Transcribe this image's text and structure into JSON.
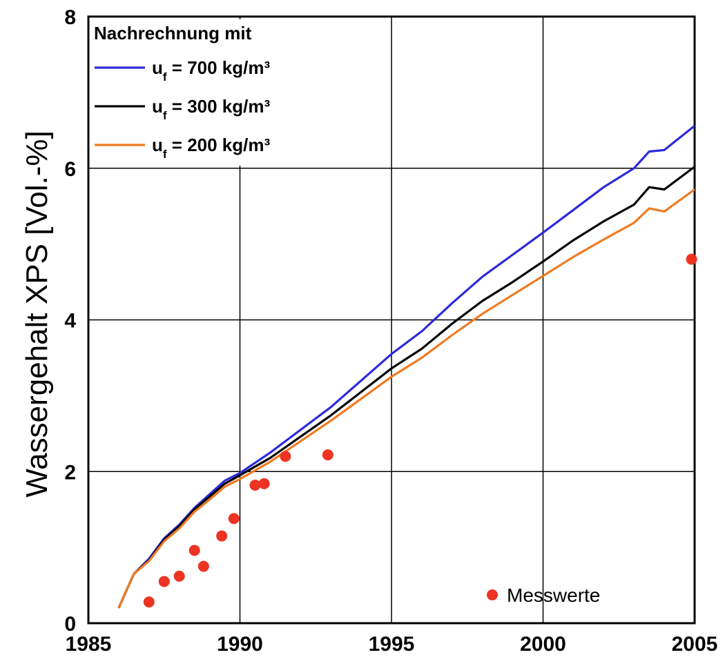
{
  "chart_data": {
    "type": "line",
    "title": "",
    "xlabel": "",
    "ylabel": "Wassergehalt XPS [Vol.-%]",
    "xlim": [
      1985,
      2005
    ],
    "ylim": [
      0,
      8
    ],
    "x_ticks": [
      "1985",
      "1990",
      "1995",
      "2000",
      "2005"
    ],
    "y_ticks": [
      "0",
      "2",
      "4",
      "6",
      "8"
    ],
    "grid": true,
    "legend_title": "Nachrechnung mit",
    "legend_placement": "top-left",
    "series": [
      {
        "name": "u_f = 700 kg/m³",
        "label_main": "u",
        "label_sub": "f",
        "label_rest": " = 700 kg/m³",
        "color": "#2b2bdc",
        "x": [
          1986,
          1986.5,
          1987,
          1987.5,
          1988,
          1988.5,
          1989,
          1989.5,
          1990,
          1991,
          1992,
          1993,
          1994,
          1995,
          1996,
          1997,
          1998,
          1999,
          2000,
          2001,
          2002,
          2003,
          2003.5,
          2004,
          2005
        ],
        "y": [
          0.2,
          0.65,
          0.85,
          1.12,
          1.3,
          1.52,
          1.7,
          1.88,
          1.98,
          2.25,
          2.55,
          2.85,
          3.2,
          3.55,
          3.85,
          4.22,
          4.57,
          4.86,
          5.15,
          5.45,
          5.75,
          6.0,
          6.22,
          6.24,
          6.56
        ]
      },
      {
        "name": "u_f = 300 kg/m³",
        "label_main": "u",
        "label_sub": "f",
        "label_rest": " = 300 kg/m³",
        "color": "#000000",
        "x": [
          1986,
          1986.5,
          1987,
          1987.5,
          1988,
          1988.5,
          1989,
          1989.5,
          1990,
          1991,
          1992,
          1993,
          1994,
          1995,
          1996,
          1997,
          1998,
          1999,
          2000,
          2001,
          2002,
          2003,
          2003.5,
          2004,
          2005
        ],
        "y": [
          0.2,
          0.65,
          0.83,
          1.1,
          1.28,
          1.5,
          1.67,
          1.84,
          1.95,
          2.18,
          2.46,
          2.74,
          3.05,
          3.36,
          3.62,
          3.95,
          4.25,
          4.5,
          4.77,
          5.05,
          5.3,
          5.52,
          5.75,
          5.72,
          6.02
        ]
      },
      {
        "name": "u_f = 200 kg/m³",
        "label_main": "u",
        "label_sub": "f",
        "label_rest": " = 200 kg/m³",
        "color": "#f07a20",
        "x": [
          1986,
          1986.5,
          1987,
          1987.5,
          1988,
          1988.5,
          1989,
          1989.5,
          1990,
          1991,
          1992,
          1993,
          1994,
          1995,
          1996,
          1997,
          1998,
          1999,
          2000,
          2001,
          2002,
          2003,
          2003.5,
          2004,
          2005
        ],
        "y": [
          0.2,
          0.65,
          0.82,
          1.08,
          1.25,
          1.47,
          1.63,
          1.8,
          1.9,
          2.13,
          2.4,
          2.67,
          2.96,
          3.25,
          3.5,
          3.8,
          4.08,
          4.33,
          4.58,
          4.83,
          5.06,
          5.28,
          5.47,
          5.43,
          5.72
        ]
      }
    ],
    "points": {
      "name": "Messwerte",
      "color": "#ee3322",
      "x": [
        1987.0,
        1987.5,
        1988.0,
        1988.5,
        1988.8,
        1989.4,
        1989.8,
        1990.5,
        1990.8,
        1991.5,
        1992.9,
        2004.9
      ],
      "y": [
        0.28,
        0.55,
        0.62,
        0.96,
        0.75,
        1.15,
        1.38,
        1.82,
        1.84,
        2.2,
        2.22,
        4.8
      ]
    }
  }
}
